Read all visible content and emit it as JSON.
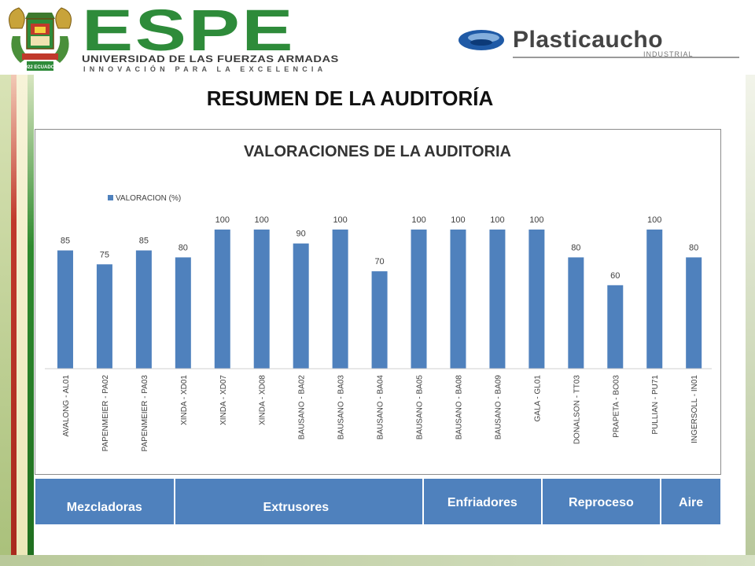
{
  "header": {
    "espe": {
      "name": "ESPE",
      "university": "UNIVERSIDAD DE LAS FUERZAS ARMADAS",
      "slogan": "INNOVACIÓN PARA LA EXCELENCIA",
      "crest_text": "1922 ECUADOR"
    },
    "partner": {
      "name": "Plasticaucho",
      "sub": "INDUSTRIAL"
    }
  },
  "page_title": "RESUMEN DE LA AUDITORÍA",
  "colors": {
    "bar": "#4f81bd",
    "espe_green": "#2e8b3a",
    "table_fill": "#4f81bd"
  },
  "chart_data": {
    "type": "bar",
    "title": "VALORACIONES DE LA AUDITORIA",
    "legend_position": "top-left",
    "grid": false,
    "ylim": [
      0,
      100
    ],
    "categories": [
      "AVALONG - AL01",
      "PAPENMEIER - PA02",
      "PAPENMEIER - PA03",
      "XINDA - XD01",
      "XINDA - XD07",
      "XINDA - XD08",
      "BAUSANO - BA02",
      "BAUSANO - BA03",
      "BAUSANO - BA04",
      "BAUSANO - BA05",
      "BAUSANO - BA08",
      "BAUSANO - BA09",
      "GALA - GL01",
      "DONALSON - TT03",
      "PRAPETA - BO03",
      "PULLIAN - PU71",
      "INGERSOLL - IN01"
    ],
    "series": [
      {
        "name": "VALORACION (%)",
        "values": [
          85,
          75,
          85,
          80,
          100,
          100,
          90,
          100,
          70,
          100,
          100,
          100,
          100,
          80,
          60,
          100,
          80
        ]
      }
    ]
  },
  "category_table": {
    "cells": [
      "Mezcladoras",
      "Extrusores",
      "Enfriadores",
      "Reproceso",
      "Aire"
    ]
  }
}
